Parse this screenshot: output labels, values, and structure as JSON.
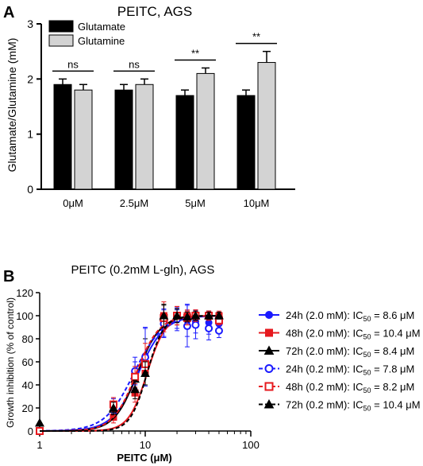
{
  "panel_a": {
    "label": "A",
    "title": "PEITC,  AGS",
    "chart_data": {
      "type": "bar",
      "title": "PEITC,  AGS",
      "xlabel": "",
      "ylabel": "Glutamate/Glutamine (mM)",
      "categories": [
        "0μM",
        "2.5μM",
        "5μM",
        "10μM"
      ],
      "ylim": [
        0,
        3
      ],
      "yticks": [
        "0",
        "1",
        "2",
        "3"
      ],
      "series": [
        {
          "name": "Glutamate",
          "color": "#000000",
          "values": [
            1.9,
            1.8,
            1.7,
            1.7
          ],
          "errors": [
            0.1,
            0.1,
            0.1,
            0.1
          ]
        },
        {
          "name": "Glutamine",
          "color": "#d3d3d3",
          "values": [
            1.8,
            1.9,
            2.1,
            2.3
          ],
          "errors": [
            0.1,
            0.1,
            0.1,
            0.2
          ]
        }
      ],
      "significance": [
        "ns",
        "ns",
        "**",
        "**"
      ],
      "legend_position": "top-left"
    }
  },
  "panel_b": {
    "label": "B",
    "title": "PEITC (0.2mM L-gln), AGS",
    "chart_data": {
      "type": "scatter",
      "title": "PEITC (0.2mM L-gln), AGS",
      "xlabel": "PEITC (μM)",
      "ylabel": "Growth inhibition (% of control)",
      "xscale": "log",
      "xlim": [
        1,
        100
      ],
      "ylim": [
        0,
        120
      ],
      "xticks": [
        "1",
        "10",
        "100"
      ],
      "yticks": [
        "0",
        "20",
        "40",
        "60",
        "80",
        "100",
        "120"
      ],
      "legend_position": "right",
      "series": [
        {
          "label_prefix": "24h (2.0 mM): IC",
          "label_sub": "50",
          "label_suffix": " = 8.6 μM",
          "color": "#1a1aff",
          "marker": "circle",
          "filled": true,
          "dashed": false,
          "ic50": 8.6,
          "hill": 3.5,
          "points": [
            [
              1,
              0
            ],
            [
              5,
              22
            ],
            [
              8,
              50
            ],
            [
              10,
              65
            ],
            [
              15,
              94
            ],
            [
              20,
              97
            ],
            [
              25,
              96
            ],
            [
              30,
              95
            ],
            [
              40,
              94
            ],
            [
              50,
              93
            ]
          ],
          "errors": [
            0,
            6,
            10,
            25,
            12,
            8,
            14,
            10,
            10,
            6
          ]
        },
        {
          "label_prefix": "48h (2.0 mM): IC",
          "label_sub": "50",
          "label_suffix": " = 10.4 μM",
          "color": "#e6191e",
          "marker": "square",
          "filled": true,
          "dashed": false,
          "ic50": 10.4,
          "hill": 5,
          "points": [
            [
              1,
              0
            ],
            [
              5,
              12
            ],
            [
              8,
              33
            ],
            [
              10,
              50
            ],
            [
              15,
              100
            ],
            [
              20,
              100
            ],
            [
              25,
              100
            ],
            [
              30,
              100
            ],
            [
              40,
              100
            ],
            [
              50,
              100
            ]
          ],
          "errors": [
            0,
            5,
            8,
            10,
            12,
            8,
            5,
            5,
            4,
            4
          ]
        },
        {
          "label_prefix": "72h (2.0 mM): IC",
          "label_sub": "50",
          "label_suffix": " = 8.4 μM",
          "color": "#000000",
          "marker": "triangle",
          "filled": true,
          "dashed": false,
          "ic50": 8.4,
          "hill": 4,
          "points": [
            [
              1,
              7
            ],
            [
              5,
              19
            ],
            [
              8,
              45
            ],
            [
              10,
              60
            ],
            [
              15,
              99
            ],
            [
              20,
              100
            ],
            [
              25,
              99
            ],
            [
              30,
              100
            ],
            [
              40,
              100
            ],
            [
              50,
              100
            ]
          ],
          "errors": [
            0,
            5,
            8,
            20,
            10,
            6,
            5,
            4,
            4,
            3
          ]
        },
        {
          "label_prefix": "24h (0.2 mM): IC",
          "label_sub": "50",
          "label_suffix": " = 7.8 μM",
          "color": "#1a1aff",
          "marker": "circle",
          "filled": false,
          "dashed": true,
          "ic50": 7.8,
          "hill": 3.2,
          "points": [
            [
              1,
              0
            ],
            [
              5,
              22
            ],
            [
              8,
              52
            ],
            [
              10,
              64
            ],
            [
              15,
              93
            ],
            [
              20,
              97
            ],
            [
              25,
              91
            ],
            [
              30,
              92
            ],
            [
              40,
              89
            ],
            [
              50,
              87
            ]
          ],
          "errors": [
            0,
            7,
            12,
            25,
            12,
            10,
            18,
            12,
            10,
            6
          ]
        },
        {
          "label_prefix": "48h (0.2 mM): IC",
          "label_sub": "50",
          "label_suffix": " = 8.2 μM",
          "color": "#e6191e",
          "marker": "square",
          "filled": false,
          "dashed": true,
          "ic50": 8.2,
          "hill": 4,
          "points": [
            [
              1,
              0
            ],
            [
              5,
              23
            ],
            [
              8,
              47
            ],
            [
              10,
              58
            ],
            [
              15,
              98
            ],
            [
              20,
              100
            ],
            [
              25,
              98
            ],
            [
              30,
              100
            ],
            [
              40,
              100
            ],
            [
              50,
              96
            ]
          ],
          "errors": [
            0,
            6,
            9,
            18,
            12,
            8,
            6,
            5,
            4,
            4
          ]
        },
        {
          "label_prefix": "72h (0.2 mM): IC",
          "label_sub": "50",
          "label_suffix": " = 10.4 μM",
          "color": "#000000",
          "marker": "triangle",
          "filled": true,
          "dashed": true,
          "ic50": 10.4,
          "hill": 5.5,
          "points": [
            [
              1,
              7
            ],
            [
              5,
              20
            ],
            [
              8,
              36
            ],
            [
              10,
              50
            ],
            [
              15,
              100
            ],
            [
              20,
              100
            ],
            [
              25,
              99
            ],
            [
              30,
              100
            ],
            [
              40,
              100
            ],
            [
              50,
              100
            ]
          ],
          "errors": [
            0,
            5,
            8,
            10,
            10,
            6,
            4,
            4,
            3,
            3
          ]
        }
      ]
    }
  }
}
